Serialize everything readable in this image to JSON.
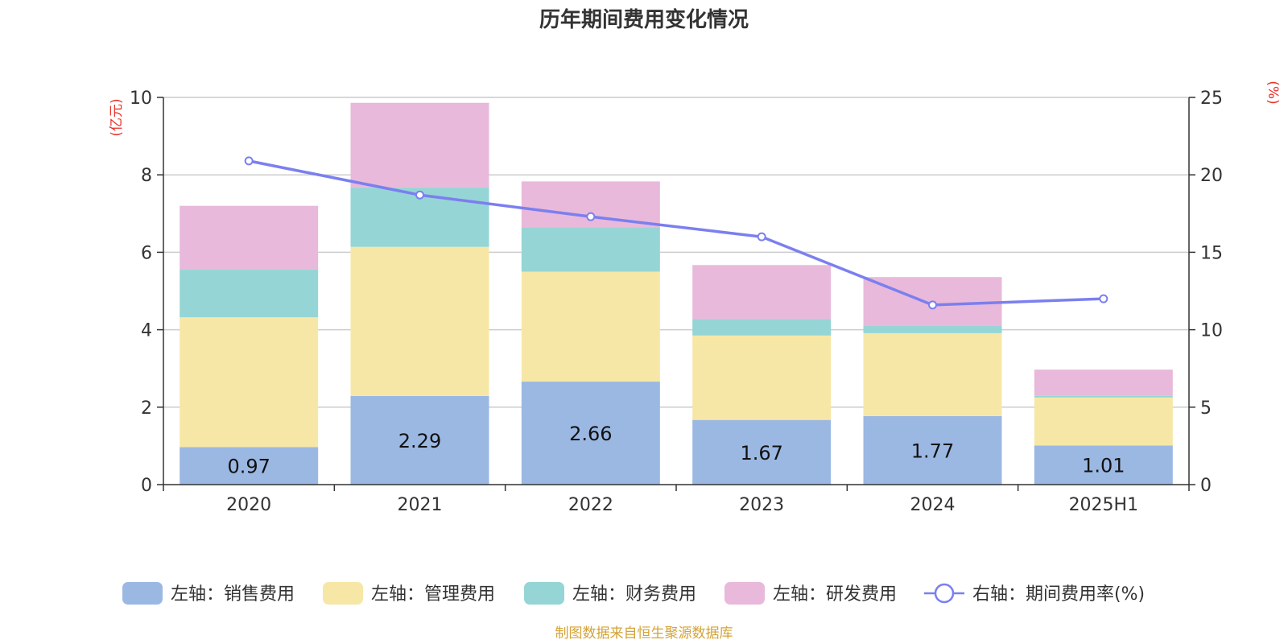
{
  "chart_data": {
    "type": "bar",
    "stacked": true,
    "title": "历年期间费用变化情况",
    "categories": [
      "2020",
      "2021",
      "2022",
      "2023",
      "2024",
      "2025H1"
    ],
    "left_axis": {
      "unit": "(亿元)",
      "ylim": [
        0,
        10
      ],
      "ticks": [
        "0",
        "2",
        "4",
        "6",
        "8",
        "10"
      ]
    },
    "right_axis": {
      "unit": "(%)",
      "ylim": [
        0,
        25
      ],
      "ticks": [
        "0",
        "5",
        "10",
        "15",
        "20",
        "25"
      ]
    },
    "series": [
      {
        "name": "左轴：销售费用",
        "axis": "left",
        "color": "#9bb8e3",
        "values": [
          0.97,
          2.29,
          2.66,
          1.67,
          1.77,
          1.01
        ],
        "labels": [
          "0.97",
          "2.29",
          "2.66",
          "1.67",
          "1.77",
          "1.01"
        ]
      },
      {
        "name": "左轴：管理费用",
        "axis": "left",
        "color": "#f7e7a7",
        "values": [
          3.35,
          3.85,
          2.84,
          2.18,
          2.14,
          1.24
        ]
      },
      {
        "name": "左轴：财务费用",
        "axis": "left",
        "color": "#96d5d5",
        "values": [
          1.23,
          1.53,
          1.15,
          0.43,
          0.2,
          0.04
        ]
      },
      {
        "name": "左轴：研发费用",
        "axis": "left",
        "color": "#e8b9da",
        "values": [
          1.65,
          2.19,
          1.18,
          1.39,
          1.25,
          0.68
        ]
      },
      {
        "name": "右轴：期间费用率(%)",
        "axis": "right",
        "type": "line",
        "color": "#7b7fef",
        "values": [
          20.9,
          18.7,
          17.3,
          16.0,
          11.6,
          12.0
        ]
      }
    ],
    "unit_color": "#e8312b",
    "grid": true,
    "legend_position": "bottom"
  },
  "source": {
    "text": "制图数据来自恒生聚源数据库",
    "color": "#d4a337"
  }
}
